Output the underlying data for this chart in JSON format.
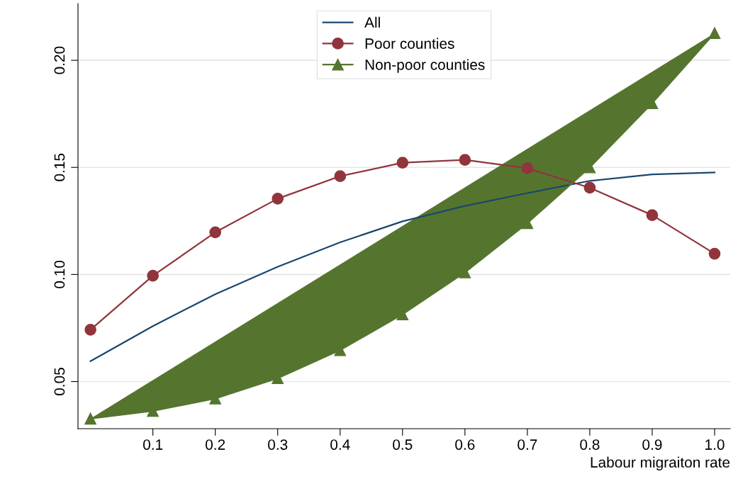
{
  "chart_data": {
    "type": "line",
    "xlabel": "Labour migraiton rate",
    "x": [
      0,
      0.1,
      0.2,
      0.3,
      0.4,
      0.5,
      0.6,
      0.7,
      0.8,
      0.9,
      1.0
    ],
    "series": [
      {
        "name": "All",
        "color": "#1a476f",
        "marker": "none",
        "values": [
          0.0595,
          0.0759,
          0.0908,
          0.1036,
          0.115,
          0.1248,
          0.132,
          0.138,
          0.1437,
          0.1467,
          0.1476
        ]
      },
      {
        "name": "Poor counties",
        "color": "#90353b",
        "marker": "circle",
        "values": [
          0.0742,
          0.0994,
          0.1197,
          0.1354,
          0.1459,
          0.1522,
          0.1535,
          0.1496,
          0.1405,
          0.1277,
          0.1097
        ]
      },
      {
        "name": "Non-poor counties",
        "type": "area",
        "color": "#55752f",
        "marker": "triangle",
        "values": [
          0.0327,
          0.0363,
          0.0421,
          0.0516,
          0.0647,
          0.0814,
          0.101,
          0.124,
          0.15,
          0.18,
          0.2127
        ]
      }
    ],
    "xlim": [
      -0.02,
      1.025
    ],
    "ylim": [
      0.028,
      0.2265
    ],
    "xticks": [
      {
        "value": 0.1,
        "label": "0.1"
      },
      {
        "value": 0.2,
        "label": "0.2"
      },
      {
        "value": 0.3,
        "label": "0.3"
      },
      {
        "value": 0.4,
        "label": "0.4"
      },
      {
        "value": 0.5,
        "label": "0.5"
      },
      {
        "value": 0.6,
        "label": "0.6"
      },
      {
        "value": 0.7,
        "label": "0.7"
      },
      {
        "value": 0.8,
        "label": "0.8"
      },
      {
        "value": 0.9,
        "label": "0.9"
      },
      {
        "value": 1.0,
        "label": "1.0"
      }
    ],
    "yticks": [
      0.05,
      {
        "value": 0.1,
        "label": "0.10"
      },
      0.15,
      {
        "value": 0.2,
        "label": "0.20"
      }
    ],
    "grid": "y",
    "legend": "top"
  }
}
